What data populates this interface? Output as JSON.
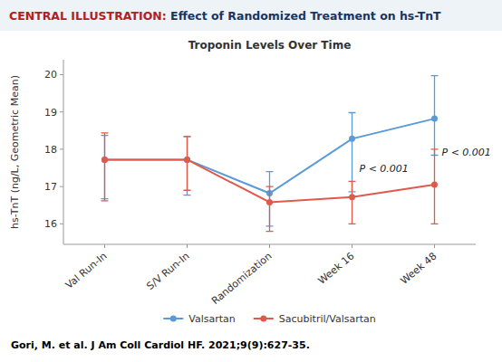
{
  "chart_data": {
    "type": "line",
    "header": [
      "CENTRAL ILLUSTRATION:",
      " Effect of Randomized Treatment on hs-TnT"
    ],
    "title": "Troponin Levels Over Time",
    "y_label": "hs-TnT (ng/L, Geometric Mean)",
    "footer": "Gori, M. et al. J Am Coll Cardiol HF. 2021;9(9):627-35.",
    "categories": [
      "Val Run-In",
      "S/V Run-In",
      "Randomization",
      "Week 16",
      "Week 48"
    ],
    "ylim": [
      15.45,
      20.4
    ],
    "yticks": [
      16,
      17,
      18,
      19,
      20
    ],
    "grid": false,
    "legend": "bottom",
    "marker": "circle",
    "series": [
      {
        "name": "Valsartan",
        "color": "#5b9bd5",
        "values": [
          17.72,
          17.72,
          16.82,
          18.28,
          18.82
        ],
        "error_low": [
          1.05,
          0.95,
          0.88,
          1.42,
          0.98
        ],
        "error_high": [
          0.65,
          0.62,
          0.58,
          0.7,
          1.15
        ]
      },
      {
        "name": "Sacubitril/Valsartan",
        "color": "#e05a4b",
        "values": [
          17.72,
          17.72,
          16.58,
          16.72,
          17.05
        ],
        "error_low": [
          1.1,
          0.82,
          0.78,
          0.72,
          1.05
        ],
        "error_high": [
          0.72,
          0.62,
          0.42,
          0.42,
          0.95
        ]
      }
    ],
    "annotations": [
      {
        "text": "P < 0.001",
        "category": "Week 16"
      },
      {
        "text": "P < 0.001",
        "category": "Week 48"
      }
    ]
  }
}
